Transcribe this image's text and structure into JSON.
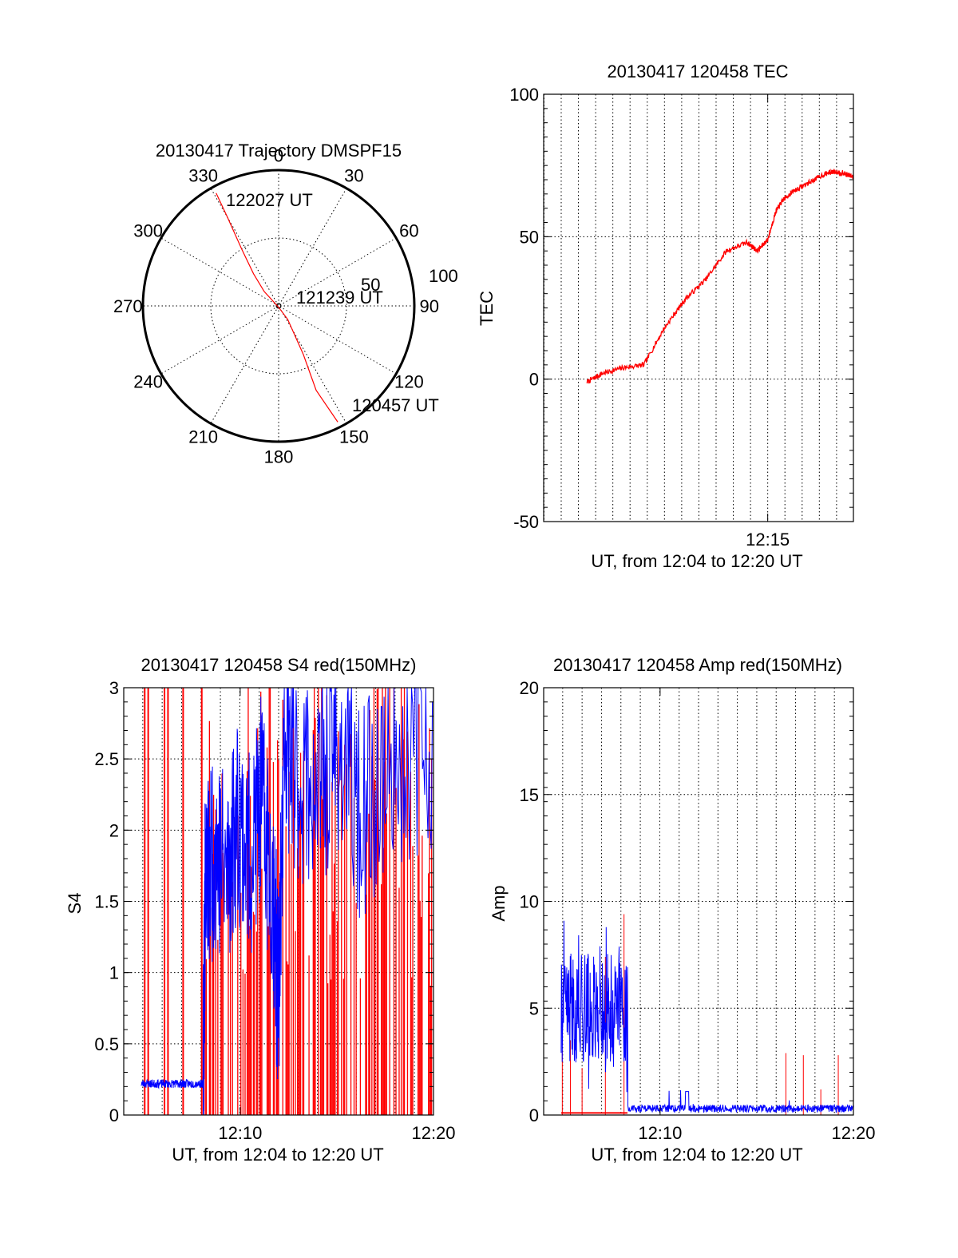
{
  "chart_data": [
    {
      "type": "polar",
      "title": "20130417 Trajectory DMSPF15",
      "azimuth_labels": [
        "0",
        "30",
        "60",
        "90",
        "120",
        "150",
        "180",
        "210",
        "240",
        "270",
        "300",
        "330"
      ],
      "radial_labels": [
        "50",
        "100"
      ],
      "series": [
        {
          "color": "#ff0000",
          "points": [
            {
              "az": 331,
              "r": 95
            },
            {
              "az": 330,
              "r": 75
            },
            {
              "az": 327,
              "r": 50
            },
            {
              "az": 322,
              "r": 30
            },
            {
              "az": 315,
              "r": 15
            },
            {
              "az": 180,
              "r": 1
            },
            {
              "az": 146,
              "r": 12
            },
            {
              "az": 153,
              "r": 40
            },
            {
              "az": 156,
              "r": 68
            },
            {
              "az": 153,
              "r": 96
            }
          ]
        }
      ],
      "annotations": [
        {
          "text": "122027 UT",
          "az": 334,
          "r": 83
        },
        {
          "text": "121239 UT",
          "az": 102,
          "r": 14
        },
        {
          "text": "120457 UT",
          "az": 134,
          "r": 87
        }
      ]
    },
    {
      "type": "line",
      "title": "20130417 120458 TEC",
      "xlabel": "UT, from 12:04 to 12:20 UT",
      "ylabel": "TEC",
      "xlim": [
        12.033,
        12.333
      ],
      "ylim": [
        -50,
        100
      ],
      "xticks": [
        {
          "x": 12.25,
          "label": "12:15"
        }
      ],
      "yticks": [
        -50,
        0,
        50,
        100
      ],
      "grid": true,
      "series": [
        {
          "color": "#ff0000",
          "x": [
            12.075,
            12.09,
            12.11,
            12.13,
            12.15,
            12.17,
            12.19,
            12.21,
            12.23,
            12.24,
            12.25,
            12.258,
            12.265,
            12.275,
            12.29,
            12.305,
            12.315,
            12.325,
            12.333
          ],
          "y": [
            -1,
            2,
            4,
            5,
            18,
            28,
            35,
            45,
            48,
            45,
            49,
            59,
            63,
            66,
            69,
            72,
            73,
            72,
            71
          ]
        }
      ]
    },
    {
      "type": "line",
      "title": "20130417 120458 S4 red(150MHz)",
      "xlabel": "UT, from 12:04 to 12:20 UT",
      "ylabel": "S4",
      "xlim": [
        12.067,
        12.333
      ],
      "ylim": [
        0,
        3
      ],
      "xticks": [
        {
          "x": 12.167,
          "label": "12:10"
        },
        {
          "x": 12.333,
          "label": "12:20"
        }
      ],
      "yticks": [
        {
          "y": 0,
          "label": "0"
        },
        {
          "y": 0.5,
          "label": "0.5"
        },
        {
          "y": 1,
          "label": "1"
        },
        {
          "y": 1.5,
          "label": "1.5"
        },
        {
          "y": 2,
          "label": "2"
        },
        {
          "y": 2.5,
          "label": "2.5"
        },
        {
          "y": 3,
          "label": "3"
        }
      ],
      "grid": true,
      "series": [
        {
          "color": "#0000ff",
          "x": [
            12.082,
            12.095,
            12.11,
            12.12,
            12.135,
            12.137,
            12.145,
            12.155,
            12.165,
            12.175,
            12.185,
            12.195,
            12.2,
            12.205,
            12.215,
            12.235,
            12.25,
            12.27,
            12.3,
            12.333
          ],
          "y": [
            0.22,
            0.22,
            0.22,
            0.22,
            0.22,
            1.6,
            1.9,
            1.7,
            2.1,
            1.8,
            2.2,
            1.6,
            0.8,
            2.6,
            2.4,
            2.3,
            2.6,
            2.1,
            2.5,
            2.6
          ]
        },
        {
          "color": "#ff0000",
          "x": [
            12.085,
            12.102,
            12.118,
            12.134,
            12.152,
            12.2,
            12.21,
            12.225,
            12.24,
            12.255,
            12.27,
            12.285,
            12.3,
            12.315,
            12.33
          ],
          "y": [
            3,
            3,
            3,
            3,
            3,
            3,
            1.4,
            2.0,
            1.2,
            2.5,
            3.0,
            2.6,
            3.0,
            3.0,
            3.0
          ]
        }
      ]
    },
    {
      "type": "line",
      "title": "20130417 120458 Amp red(150MHz)",
      "xlabel": "UT, from 12:04 to 12:20 UT",
      "ylabel": "Amp",
      "xlim": [
        12.067,
        12.333
      ],
      "ylim": [
        0,
        20
      ],
      "xticks": [
        {
          "x": 12.167,
          "label": "12:10"
        },
        {
          "x": 12.333,
          "label": "12:20"
        }
      ],
      "yticks": [
        0,
        5,
        10,
        15,
        20
      ],
      "grid": true,
      "series": [
        {
          "color": "#0000ff",
          "x": [
            12.082,
            12.09,
            12.1,
            12.11,
            12.12,
            12.13,
            12.138,
            12.14,
            12.16,
            12.18,
            12.19,
            12.2,
            12.22,
            12.25,
            12.28,
            12.31,
            12.333
          ],
          "y": [
            5,
            6,
            5,
            6,
            5,
            6,
            5,
            0.3,
            0.3,
            0.3,
            1.0,
            0.3,
            0.3,
            0.3,
            0.3,
            0.3,
            0.3
          ]
        },
        {
          "color": "#ff0000",
          "x": [
            12.082,
            12.1,
            12.12,
            12.138,
            12.15,
            12.2,
            12.25,
            12.275,
            12.29,
            12.305,
            12.32
          ],
          "y": [
            0.1,
            0.1,
            0.1,
            0.1,
            0.05,
            0.05,
            0.05,
            2.9,
            2.8,
            1.2,
            2.8
          ]
        }
      ]
    }
  ]
}
